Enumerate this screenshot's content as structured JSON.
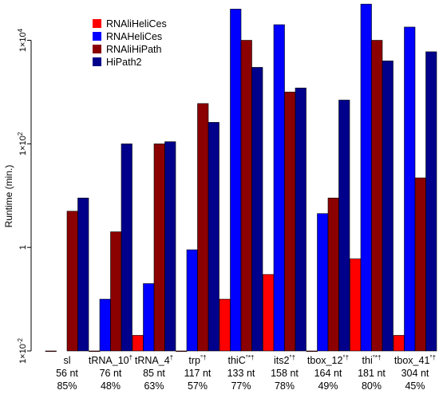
{
  "chart_data": {
    "type": "bar",
    "scale": "log",
    "ylabel": "Runtime (min.)",
    "ylim": [
      0.01,
      60000
    ],
    "yticks": [
      {
        "value": 0.01,
        "base": "1×10",
        "exp": "-2"
      },
      {
        "value": 1,
        "base": "1",
        "exp": ""
      },
      {
        "value": 100,
        "base": "1×10",
        "exp": "2"
      },
      {
        "value": 10000,
        "base": "1×10",
        "exp": "4"
      }
    ],
    "colors": [
      "#ff0000",
      "#0000ff",
      "#8b0000",
      "#00008b"
    ],
    "legend_position": "top-left",
    "categories": [
      {
        "name": "sl",
        "sup": "",
        "length": "56 nt",
        "percent": "85%"
      },
      {
        "name": "tRNA_10",
        "sup": "†",
        "length": "76 nt",
        "percent": "48%"
      },
      {
        "name": "tRNA_4",
        "sup": "†",
        "length": "85 nt",
        "percent": "63%"
      },
      {
        "name": "trp",
        "sup": "°†",
        "length": "117 nt",
        "percent": "57%"
      },
      {
        "name": "thiC",
        "sup": "°*†",
        "length": "133 nt",
        "percent": "77%"
      },
      {
        "name": "its2",
        "sup": "°†",
        "length": "158 nt",
        "percent": "78%"
      },
      {
        "name": "tbox_12",
        "sup": "°†",
        "length": "164 nt",
        "percent": "49%"
      },
      {
        "name": "thi",
        "sup": "°*†",
        "length": "181 nt",
        "percent": "80%"
      },
      {
        "name": "tbox_41",
        "sup": "°†",
        "length": "304 nt",
        "percent": "45%"
      }
    ],
    "series": [
      {
        "name": "RNAliHeliCes",
        "values": [
          0.01,
          0.01,
          0.02,
          0.01,
          0.1,
          0.3,
          0.01,
          0.6,
          0.02
        ]
      },
      {
        "name": "RNAHeliCes",
        "values": [
          null,
          0.1,
          0.2,
          0.9,
          40000,
          20000,
          4.5,
          50000,
          18000
        ]
      },
      {
        "name": "RNAliHiPath",
        "values": [
          5,
          2,
          100,
          600,
          10000,
          1000,
          9,
          10000,
          22
        ]
      },
      {
        "name": "HiPath2",
        "values": [
          9,
          100,
          110,
          260,
          3000,
          1200,
          700,
          4000,
          6000
        ]
      }
    ]
  }
}
